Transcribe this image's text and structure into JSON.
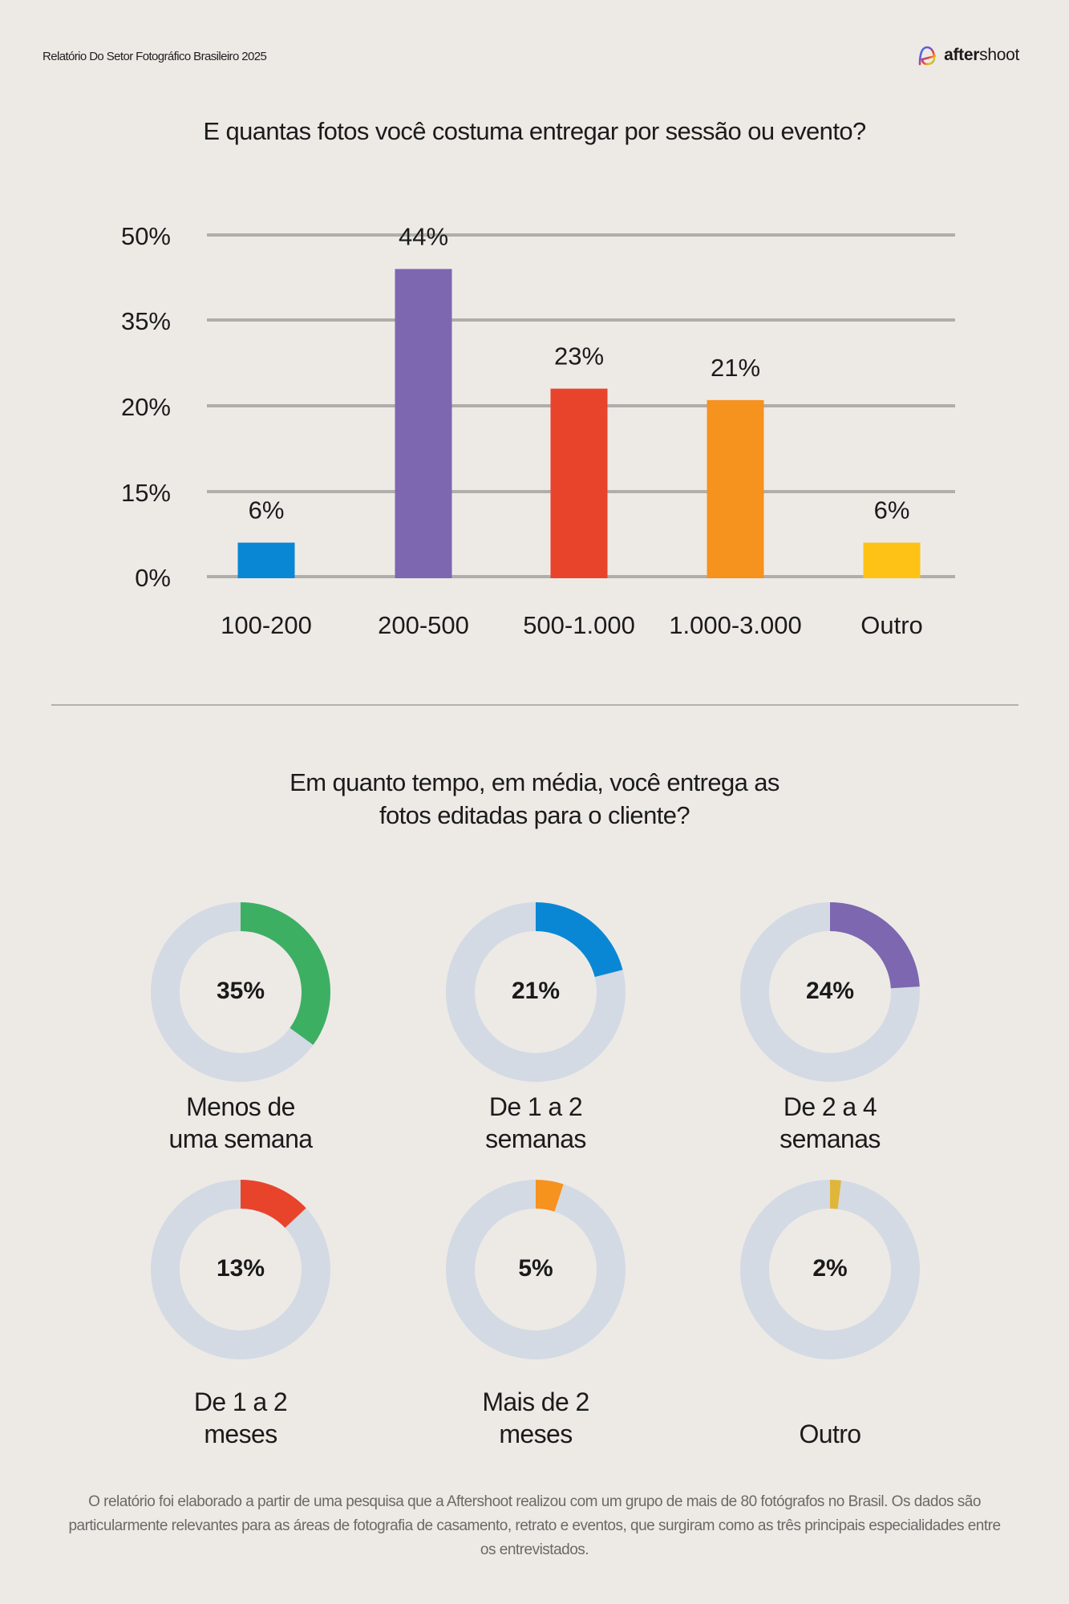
{
  "header": {
    "report_title": "Relatório Do Setor Fotográfico Brasileiro 2025",
    "brand_bold": "after",
    "brand_light": "shoot",
    "brand_icon": "aftershoot-logo-icon"
  },
  "chart_data": [
    {
      "type": "bar",
      "title": "E quantas fotos você costuma entregar por sessão ou evento?",
      "categories": [
        "100-200",
        "200-500",
        "500-1.000",
        "1.000-3.000",
        "Outro"
      ],
      "values": [
        6,
        44,
        23,
        21,
        6
      ],
      "value_labels": [
        "6%",
        "44%",
        "23%",
        "21%",
        "6%"
      ],
      "colors": [
        "#0a87d4",
        "#7d67b0",
        "#e8442c",
        "#f6921e",
        "#fdc215"
      ],
      "yticks": [
        0,
        15,
        20,
        35,
        50
      ],
      "ytick_labels": [
        "0%",
        "15%",
        "20%",
        "35%",
        "50%"
      ],
      "ylim": [
        0,
        50
      ],
      "xlabel": "",
      "ylabel": "",
      "grid": true,
      "legend": "none"
    },
    {
      "type": "pie",
      "title": "Em quanto tempo, em média, você entrega as fotos editadas para o cliente?",
      "title_lines": [
        "Em quanto tempo, em média, você entrega as",
        "fotos editadas para o cliente?"
      ],
      "track_color": "#d3dae4",
      "items": [
        {
          "label_lines": [
            "Menos de",
            "uma semana"
          ],
          "value": 35,
          "value_label": "35%",
          "color": "#3daf63"
        },
        {
          "label_lines": [
            "De 1 a 2",
            "semanas"
          ],
          "value": 21,
          "value_label": "21%",
          "color": "#0a87d4"
        },
        {
          "label_lines": [
            "De 2 a 4",
            "semanas"
          ],
          "value": 24,
          "value_label": "24%",
          "color": "#7d67b0"
        },
        {
          "label_lines": [
            "De 1 a 2",
            "meses"
          ],
          "value": 13,
          "value_label": "13%",
          "color": "#e8442c"
        },
        {
          "label_lines": [
            "Mais de 2",
            "meses"
          ],
          "value": 5,
          "value_label": "5%",
          "color": "#f6921e"
        },
        {
          "label_lines": [
            "",
            "Outro"
          ],
          "value": 2,
          "value_label": "2%",
          "color": "#e0b63a"
        }
      ]
    }
  ],
  "footer": {
    "text": "O relatório foi elaborado a partir de uma pesquisa que a Aftershoot realizou com um grupo de mais de 80 fotógrafos no Brasil. Os dados são particularmente relevantes para as áreas de fotografia de casamento, retrato e eventos, que surgiram como as três principais especialidades entre os entrevistados."
  }
}
